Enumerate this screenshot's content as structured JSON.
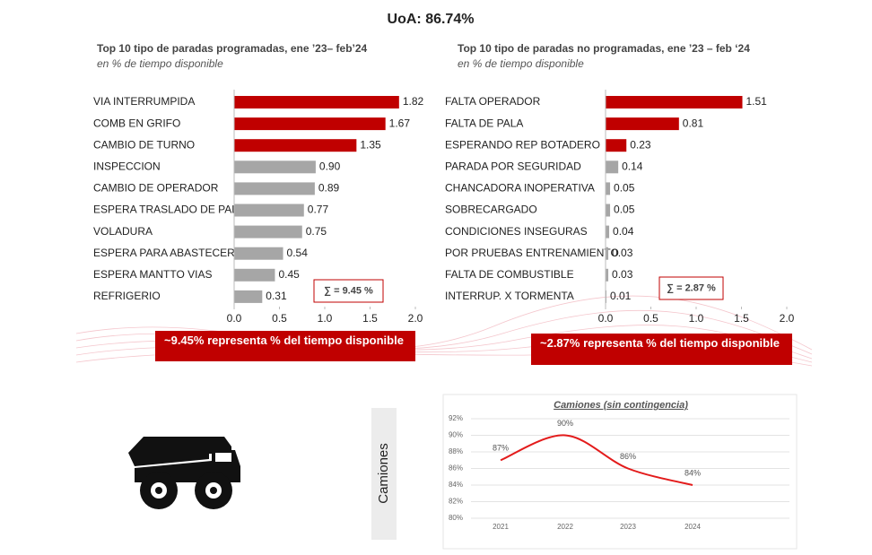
{
  "title": "UoA: 86.74%",
  "side_label": "Camiones",
  "chart_data": [
    {
      "type": "hbar",
      "title": "Top 10 tipo de paradas programadas, ene ’23– feb’24",
      "subtitle": "en % de tiempo disponible",
      "categories": [
        "VIA INTERRUMPIDA",
        "COMB EN GRIFO",
        "CAMBIO DE TURNO",
        "INSPECCION",
        "CAMBIO DE OPERADOR",
        "ESPERA TRASLADO DE PALA",
        "VOLADURA",
        "ESPERA PARA ABASTECER",
        "ESPERA MANTTO VIAS",
        "REFRIGERIO"
      ],
      "values": [
        1.82,
        1.67,
        1.35,
        0.9,
        0.89,
        0.77,
        0.75,
        0.54,
        0.45,
        0.31
      ],
      "value_labels": [
        "1.82",
        "1.67",
        "1.35",
        "0.90",
        "0.89",
        "0.77",
        "0.75",
        "0.54",
        "0.45",
        "0.31"
      ],
      "colors": [
        "#c00000",
        "#c00000",
        "#c00000",
        "#a6a6a6",
        "#a6a6a6",
        "#a6a6a6",
        "#a6a6a6",
        "#a6a6a6",
        "#a6a6a6",
        "#a6a6a6"
      ],
      "xlim": [
        0,
        2
      ],
      "xticks": [
        {
          "value": 0,
          "label": "0.0"
        },
        0.5,
        {
          "value": 1,
          "label": "1.0"
        },
        1.5,
        {
          "value": 2,
          "label": "2.0"
        }
      ],
      "annotation": "∑ = 9.45 %",
      "banner": "~9.45%  representa % del tiempo disponible"
    },
    {
      "type": "hbar",
      "title": "Top 10 tipo de paradas no programadas, ene ’23 – feb ‘24",
      "subtitle": "en % de tiempo disponible",
      "categories": [
        "FALTA OPERADOR",
        "FALTA DE PALA",
        "ESPERANDO REP BOTADERO",
        "PARADA POR SEGURIDAD",
        "CHANCADORA INOPERATIVA",
        "SOBRECARGADO",
        "CONDICIONES INSEGURAS",
        "POR PRUEBAS ENTRENAMIENTO",
        "FALTA DE COMBUSTIBLE",
        "INTERRUP. X TORMENTA"
      ],
      "values": [
        1.51,
        0.81,
        0.23,
        0.14,
        0.05,
        0.05,
        0.04,
        0.03,
        0.03,
        0.01
      ],
      "value_labels": [
        "1.51",
        "0.81",
        "0.23",
        "0.14",
        "0.05",
        "0.05",
        "0.04",
        "0.03",
        "0.03",
        "0.01"
      ],
      "colors": [
        "#c00000",
        "#c00000",
        "#c00000",
        "#a6a6a6",
        "#a6a6a6",
        "#a6a6a6",
        "#a6a6a6",
        "#a6a6a6",
        "#a6a6a6",
        "#a6a6a6"
      ],
      "xlim": [
        0,
        2
      ],
      "xticks": [
        {
          "value": 0,
          "label": "0.0"
        },
        0.5,
        {
          "value": 1,
          "label": "1.0"
        },
        1.5,
        {
          "value": 2,
          "label": "2.0"
        }
      ],
      "annotation": "∑ = 2.87 %",
      "banner": "~2.87%  representa % del tiempo disponible"
    },
    {
      "type": "line",
      "title": "Camiones (sin contingencia)",
      "categories": [
        "2021",
        "2022",
        "2023",
        "2024"
      ],
      "values": [
        87,
        90,
        86,
        84
      ],
      "value_labels": [
        "87%",
        "90%",
        "86%",
        "84%"
      ],
      "color": "#e31b1b",
      "ylim": [
        80,
        92
      ],
      "yticks": [
        {
          "value": 80,
          "label": "80%"
        },
        {
          "value": 82,
          "label": "82%"
        },
        {
          "value": 84,
          "label": "84%"
        },
        {
          "value": 86,
          "label": "86%"
        },
        {
          "value": 88,
          "label": "88%"
        },
        {
          "value": 90,
          "label": "90%"
        },
        {
          "value": 92,
          "label": "92%"
        }
      ],
      "grid": true
    }
  ]
}
